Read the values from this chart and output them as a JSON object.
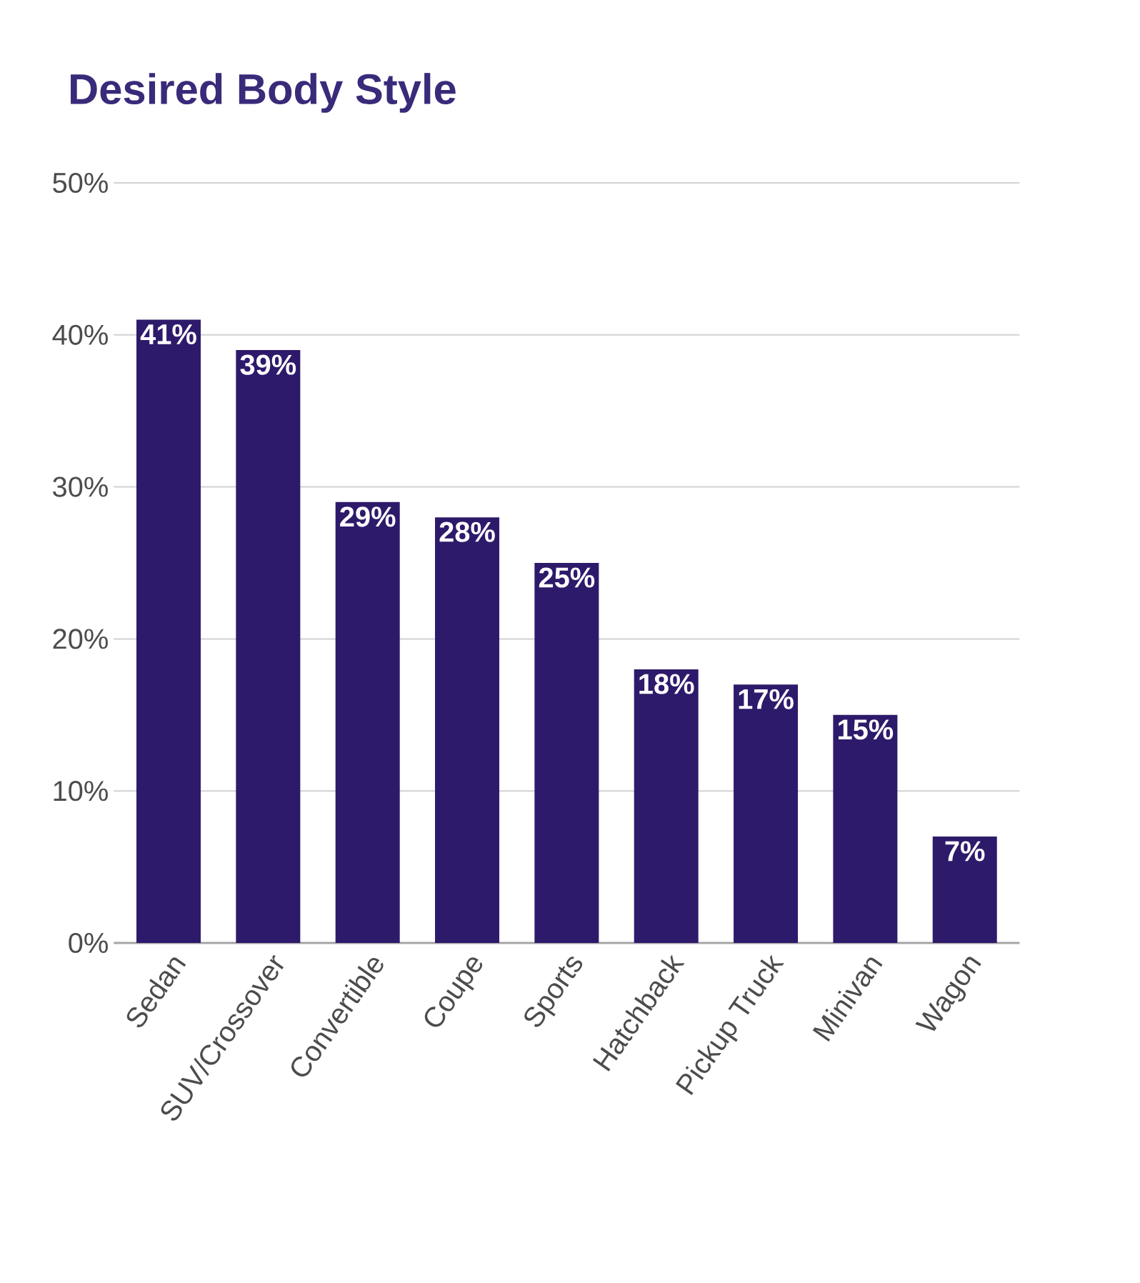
{
  "chart_data": {
    "type": "bar",
    "title": "Desired Body Style",
    "categories": [
      "Sedan",
      "SUV/Crossover",
      "Convertible",
      "Coupe",
      "Sports",
      "Hatchback",
      "Pickup Truck",
      "Minivan",
      "Wagon"
    ],
    "values": [
      41,
      39,
      29,
      28,
      25,
      18,
      17,
      15,
      7
    ],
    "value_labels": [
      "41%",
      "39%",
      "29%",
      "28%",
      "25%",
      "18%",
      "17%",
      "15%",
      "7%"
    ],
    "color": "#2e1a6b",
    "ylim": [
      0,
      50
    ],
    "yticks": [
      {
        "value": 0,
        "label": "0%"
      },
      {
        "value": 10,
        "label": "10%"
      },
      {
        "value": 20,
        "label": "20%"
      },
      {
        "value": 30,
        "label": "30%"
      },
      {
        "value": 40,
        "label": "40%"
      },
      {
        "value": 50,
        "label": "50%"
      }
    ],
    "grid": "y"
  }
}
